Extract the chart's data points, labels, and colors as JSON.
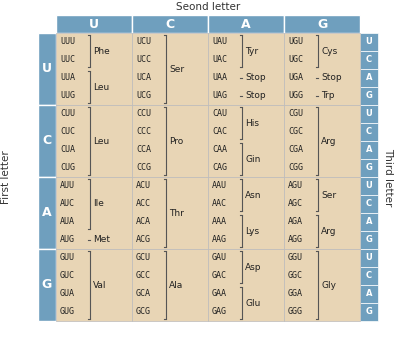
{
  "title_top": "Seond letter",
  "title_left": "First letter",
  "title_right": "Third letter",
  "col_headers": [
    "U",
    "C",
    "A",
    "G"
  ],
  "row_headers": [
    "U",
    "C",
    "A",
    "G"
  ],
  "third_letters": [
    "U",
    "C",
    "A",
    "G"
  ],
  "header_bg": "#6f9fbe",
  "cell_bg": "#e8d5b5",
  "header_text_color": "#ffffff",
  "cell_text_color": "#222222",
  "title_color": "#333333",
  "cells": [
    {
      "row": 0,
      "col": 0,
      "codons": [
        "UUU",
        "UUC",
        "UUA",
        "UUG"
      ],
      "groups": [
        {
          "codons": [
            "UUU",
            "UUC"
          ],
          "aa": "Phe"
        },
        {
          "codons": [
            "UUA",
            "UUG"
          ],
          "aa": "Leu"
        }
      ]
    },
    {
      "row": 0,
      "col": 1,
      "codons": [
        "UCU",
        "UCC",
        "UCA",
        "UCG"
      ],
      "groups": [
        {
          "codons": [
            "UCU",
            "UCC",
            "UCA",
            "UCG"
          ],
          "aa": "Ser"
        }
      ]
    },
    {
      "row": 0,
      "col": 2,
      "codons": [
        "UAU",
        "UAC",
        "UAA",
        "UAG"
      ],
      "groups": [
        {
          "codons": [
            "UAU",
            "UAC"
          ],
          "aa": "Tyr"
        },
        {
          "codons": [
            "UAA"
          ],
          "aa": "Stop"
        },
        {
          "codons": [
            "UAG"
          ],
          "aa": "Stop"
        }
      ]
    },
    {
      "row": 0,
      "col": 3,
      "codons": [
        "UGU",
        "UGC",
        "UGA",
        "UGG"
      ],
      "groups": [
        {
          "codons": [
            "UGU",
            "UGC"
          ],
          "aa": "Cys"
        },
        {
          "codons": [
            "UGA"
          ],
          "aa": "Stop"
        },
        {
          "codons": [
            "UGG"
          ],
          "aa": "Trp"
        }
      ]
    },
    {
      "row": 1,
      "col": 0,
      "codons": [
        "CUU",
        "CUC",
        "CUA",
        "CUG"
      ],
      "groups": [
        {
          "codons": [
            "CUU",
            "CUC",
            "CUA",
            "CUG"
          ],
          "aa": "Leu"
        }
      ]
    },
    {
      "row": 1,
      "col": 1,
      "codons": [
        "CCU",
        "CCC",
        "CCA",
        "CCG"
      ],
      "groups": [
        {
          "codons": [
            "CCU",
            "CCC",
            "CCA",
            "CCG"
          ],
          "aa": "Pro"
        }
      ]
    },
    {
      "row": 1,
      "col": 2,
      "codons": [
        "CAU",
        "CAC",
        "CAA",
        "CAG"
      ],
      "groups": [
        {
          "codons": [
            "CAU",
            "CAC"
          ],
          "aa": "His"
        },
        {
          "codons": [
            "CAA",
            "CAG"
          ],
          "aa": "Gin"
        }
      ]
    },
    {
      "row": 1,
      "col": 3,
      "codons": [
        "CGU",
        "CGC",
        "CGA",
        "CGG"
      ],
      "groups": [
        {
          "codons": [
            "CGU",
            "CGC",
            "CGA",
            "CGG"
          ],
          "aa": "Arg"
        }
      ]
    },
    {
      "row": 2,
      "col": 0,
      "codons": [
        "AUU",
        "AUC",
        "AUA",
        "AUG"
      ],
      "groups": [
        {
          "codons": [
            "AUU",
            "AUC",
            "AUA"
          ],
          "aa": "Ile"
        },
        {
          "codons": [
            "AUG"
          ],
          "aa": "Met"
        }
      ]
    },
    {
      "row": 2,
      "col": 1,
      "codons": [
        "ACU",
        "ACC",
        "ACA",
        "ACG"
      ],
      "groups": [
        {
          "codons": [
            "ACU",
            "ACC",
            "ACA",
            "ACG"
          ],
          "aa": "Thr"
        }
      ]
    },
    {
      "row": 2,
      "col": 2,
      "codons": [
        "AAU",
        "AAC",
        "AAA",
        "AAG"
      ],
      "groups": [
        {
          "codons": [
            "AAU",
            "AAC"
          ],
          "aa": "Asn"
        },
        {
          "codons": [
            "AAA",
            "AAG"
          ],
          "aa": "Lys"
        }
      ]
    },
    {
      "row": 2,
      "col": 3,
      "codons": [
        "AGU",
        "AGC",
        "AGA",
        "AGG"
      ],
      "groups": [
        {
          "codons": [
            "AGU",
            "AGC"
          ],
          "aa": "Ser"
        },
        {
          "codons": [
            "AGA",
            "AGG"
          ],
          "aa": "Arg"
        }
      ]
    },
    {
      "row": 3,
      "col": 0,
      "codons": [
        "GUU",
        "GUC",
        "GUA",
        "GUG"
      ],
      "groups": [
        {
          "codons": [
            "GUU",
            "GUC",
            "GUA",
            "GUG"
          ],
          "aa": "Val"
        }
      ]
    },
    {
      "row": 3,
      "col": 1,
      "codons": [
        "GCU",
        "GCC",
        "GCA",
        "GCG"
      ],
      "groups": [
        {
          "codons": [
            "GCU",
            "GCC",
            "GCA",
            "GCG"
          ],
          "aa": "Ala"
        }
      ]
    },
    {
      "row": 3,
      "col": 2,
      "codons": [
        "GAU",
        "GAC",
        "GAA",
        "GAG"
      ],
      "groups": [
        {
          "codons": [
            "GAU",
            "GAC"
          ],
          "aa": "Asp"
        },
        {
          "codons": [
            "GAA",
            "GAG"
          ],
          "aa": "Glu"
        }
      ]
    },
    {
      "row": 3,
      "col": 3,
      "codons": [
        "GGU",
        "GGC",
        "GGA",
        "GGG"
      ],
      "groups": [
        {
          "codons": [
            "GGU",
            "GGC",
            "GGA",
            "GGG"
          ],
          "aa": "Gly"
        }
      ]
    }
  ]
}
